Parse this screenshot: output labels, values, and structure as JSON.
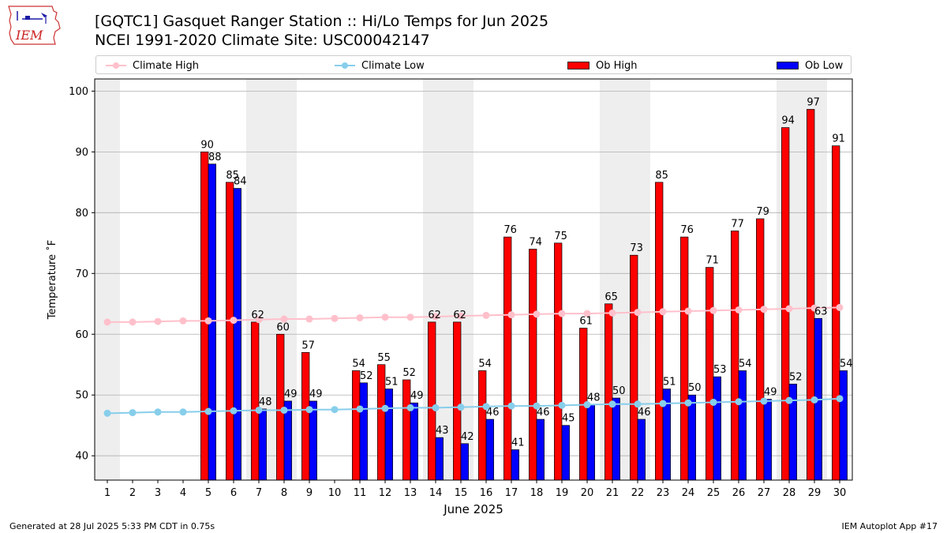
{
  "header": {
    "title_line1": "[GQTC1] Gasquet Ranger Station :: Hi/Lo Temps for Jun 2025",
    "title_line2": "NCEI 1991-2020 Climate Site: USC00042147",
    "logo_text": "IEM"
  },
  "footer": {
    "generated": "Generated at 28 Jul 2025 5:33 PM CDT in 0.75s",
    "app": "IEM Autoplot App #17"
  },
  "chart_data": {
    "type": "bar",
    "xlabel": "June 2025",
    "ylabel": "Temperature ˚F",
    "ylim": [
      36,
      102
    ],
    "xlim": [
      0.5,
      30.5
    ],
    "yticks": [
      40,
      50,
      60,
      70,
      80,
      90,
      100
    ],
    "grid": "y",
    "legend_position": "top",
    "shaded_days": [
      1,
      7,
      8,
      14,
      15,
      21,
      22,
      28,
      29
    ],
    "categories": [
      "1",
      "2",
      "3",
      "4",
      "5",
      "6",
      "7",
      "8",
      "9",
      "10",
      "11",
      "12",
      "13",
      "14",
      "15",
      "16",
      "17",
      "18",
      "19",
      "20",
      "21",
      "22",
      "23",
      "24",
      "25",
      "26",
      "27",
      "28",
      "29",
      "30"
    ],
    "series": [
      {
        "name": "Climate High",
        "kind": "line",
        "color": "#ffc0cb",
        "values": [
          62.0,
          62.0,
          62.1,
          62.2,
          62.2,
          62.3,
          62.4,
          62.5,
          62.5,
          62.6,
          62.7,
          62.8,
          62.8,
          62.9,
          63.0,
          63.1,
          63.2,
          63.3,
          63.4,
          63.4,
          63.5,
          63.6,
          63.7,
          63.8,
          63.9,
          64.0,
          64.1,
          64.2,
          64.3,
          64.4
        ]
      },
      {
        "name": "Climate Low",
        "kind": "line",
        "color": "#87ceeb",
        "values": [
          47.0,
          47.1,
          47.2,
          47.2,
          47.3,
          47.4,
          47.5,
          47.5,
          47.6,
          47.6,
          47.7,
          47.8,
          47.9,
          47.9,
          48.0,
          48.1,
          48.2,
          48.2,
          48.3,
          48.4,
          48.5,
          48.5,
          48.6,
          48.7,
          48.8,
          48.9,
          49.0,
          49.1,
          49.2,
          49.4
        ]
      },
      {
        "name": "Ob High",
        "kind": "bar",
        "color": "#ff0000",
        "values": [
          null,
          null,
          null,
          null,
          90,
          85,
          62,
          60,
          57,
          null,
          54,
          55,
          52.5,
          62,
          62,
          54,
          76,
          74,
          75,
          61,
          65,
          73,
          85,
          76,
          71,
          77,
          79,
          94,
          97,
          91
        ],
        "labels": [
          "",
          "",
          "",
          "",
          "90",
          "85",
          "62",
          "60",
          "57",
          "",
          "54",
          "55",
          "52",
          "62",
          "62",
          "54",
          "76",
          "74",
          "75",
          "61",
          "65",
          "73",
          "85",
          "76",
          "71",
          "77",
          "79",
          "94",
          "97",
          "91"
        ]
      },
      {
        "name": "Ob Low",
        "kind": "bar",
        "color": "#0000ff",
        "values": [
          null,
          null,
          null,
          null,
          88,
          84,
          47.7,
          49,
          49,
          null,
          52,
          51,
          48.7,
          43,
          42,
          46,
          41,
          46,
          45,
          48.4,
          49.5,
          46,
          51,
          50,
          53,
          54,
          49.3,
          51.8,
          62.6,
          54
        ],
        "labels": [
          "",
          "",
          "",
          "",
          "88",
          "84",
          "48",
          "49",
          "49",
          "",
          "52",
          "51",
          "49",
          "43",
          "42",
          "46",
          "41",
          "46",
          "45",
          "48",
          "50",
          "46",
          "51",
          "50",
          "53",
          "54",
          "49",
          "52",
          "63",
          "54"
        ]
      }
    ]
  }
}
